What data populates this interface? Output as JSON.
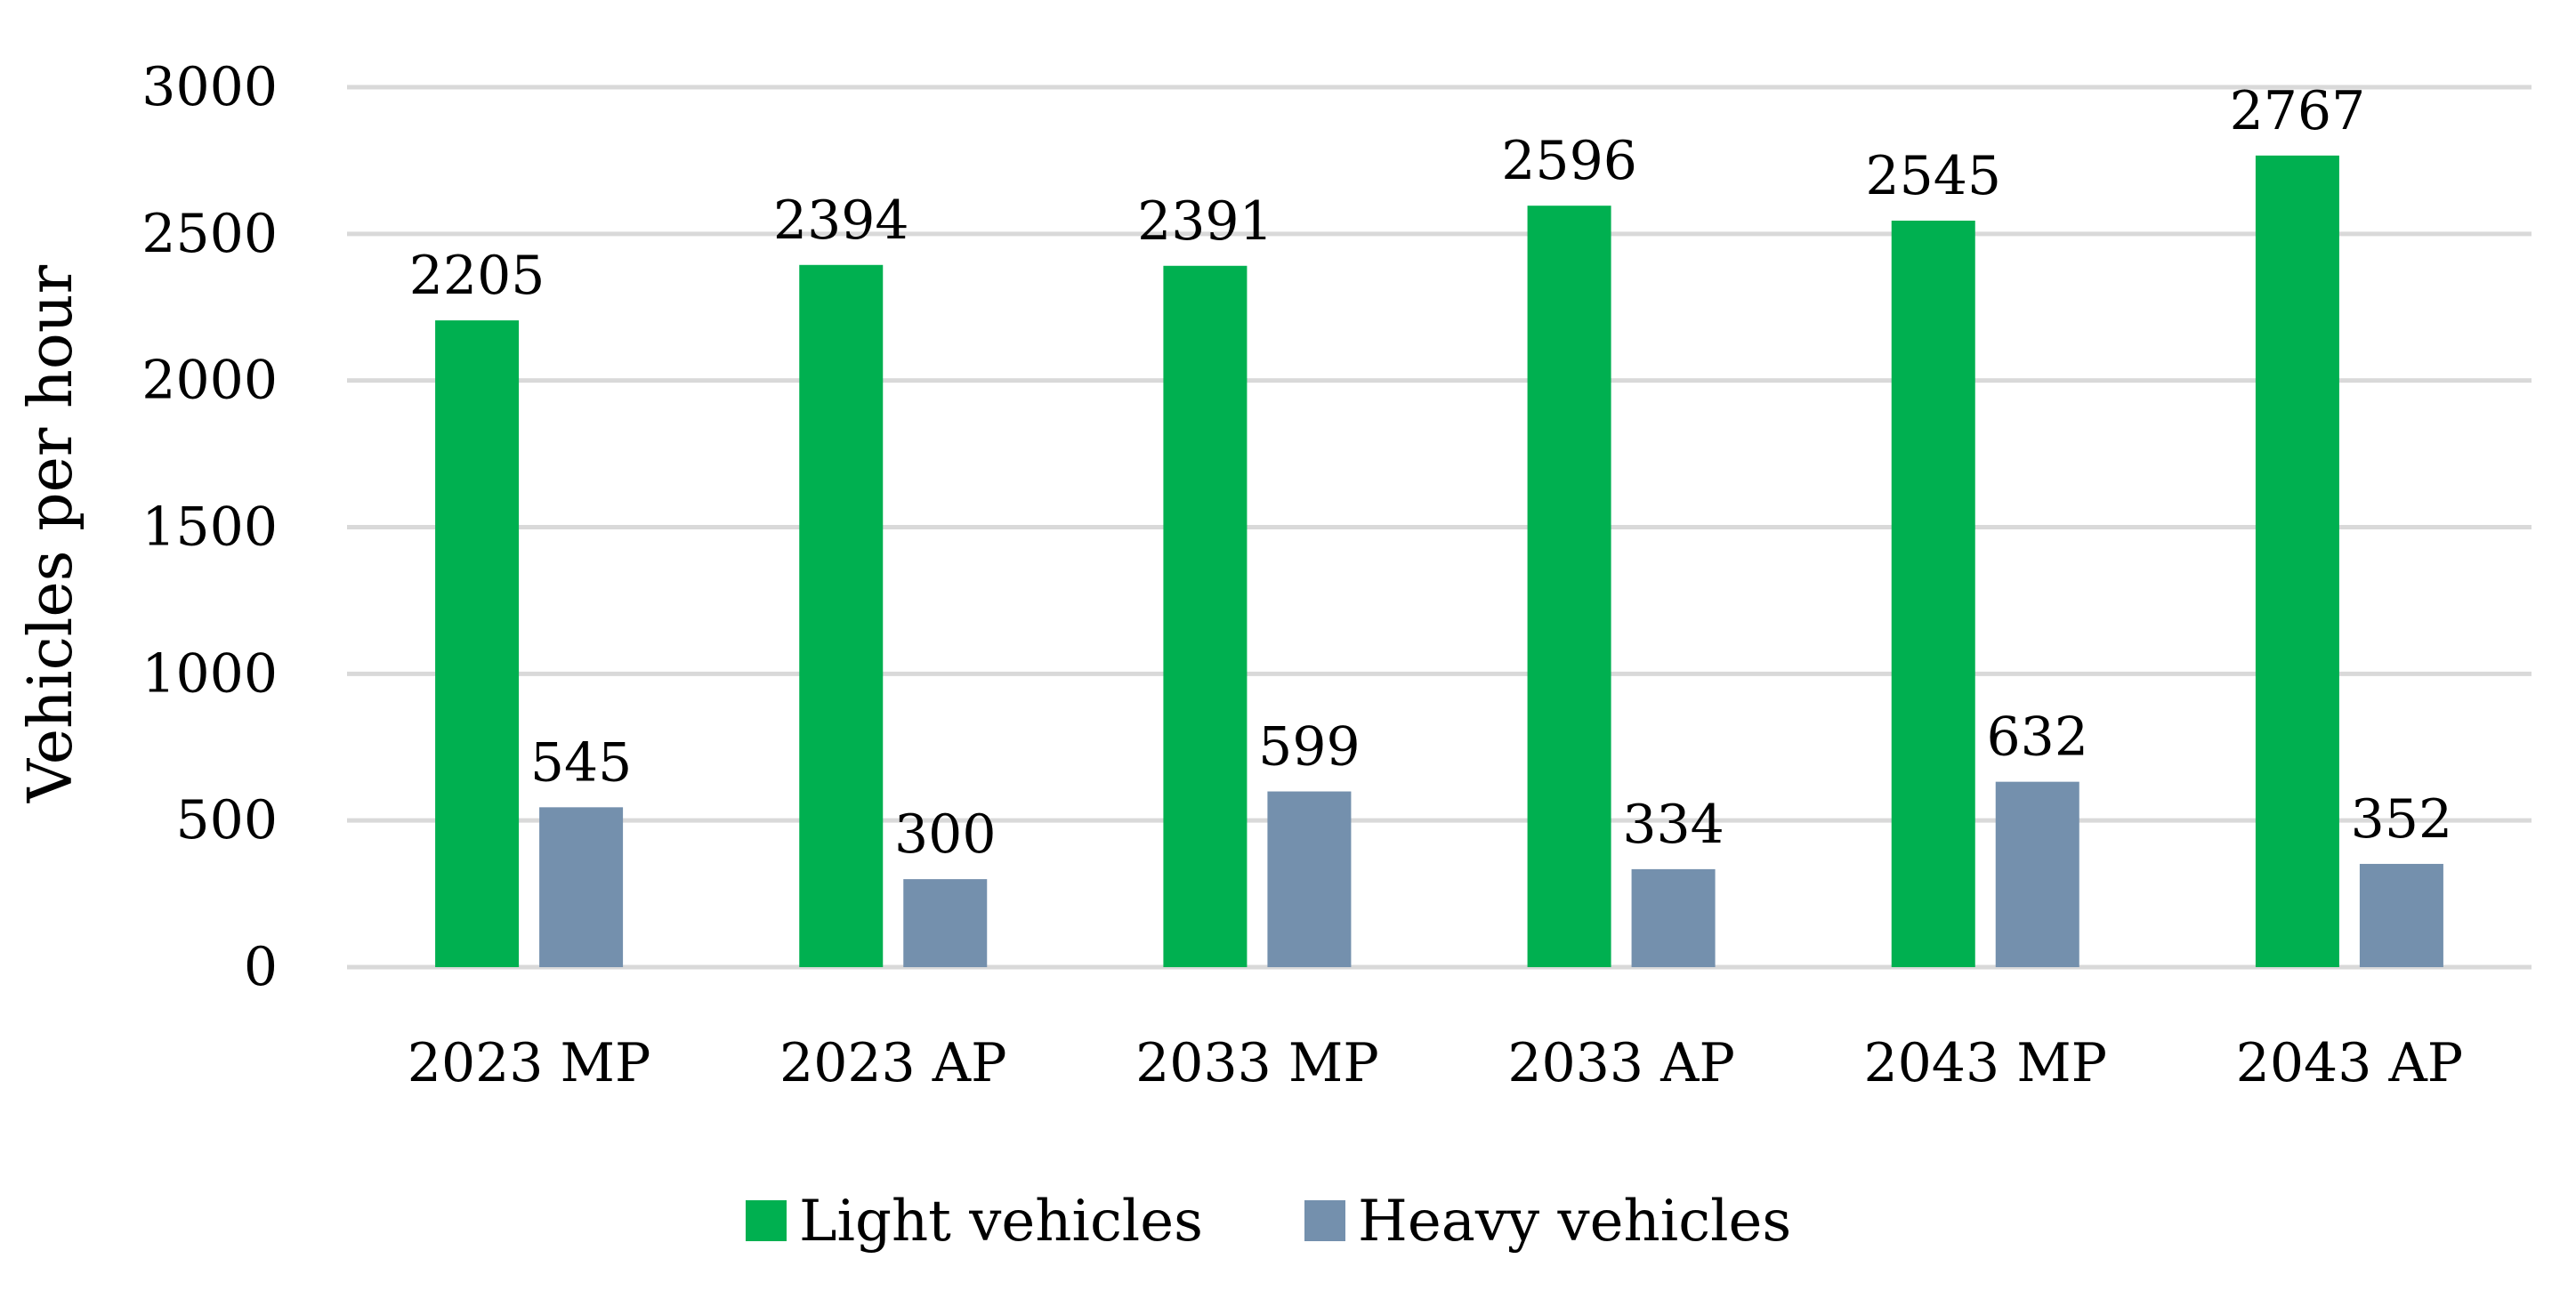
{
  "chart_data": {
    "type": "bar",
    "title": "",
    "xlabel": "",
    "ylabel": "Vehicles per hour",
    "ylim": [
      0,
      3000
    ],
    "yticks": [
      0,
      500,
      1000,
      1500,
      2000,
      2500,
      3000
    ],
    "grid": true,
    "legend_position": "bottom",
    "categories": [
      "2023 MP",
      "2023 AP",
      "2033 MP",
      "2033 AP",
      "2043 MP",
      "2043 AP"
    ],
    "series": [
      {
        "name": "Light vehicles",
        "color": "#00b050",
        "values": [
          2205,
          2394,
          2391,
          2596,
          2545,
          2767
        ]
      },
      {
        "name": "Heavy vehicles",
        "color": "#7490ad",
        "values": [
          545,
          300,
          599,
          334,
          632,
          352
        ]
      }
    ]
  }
}
